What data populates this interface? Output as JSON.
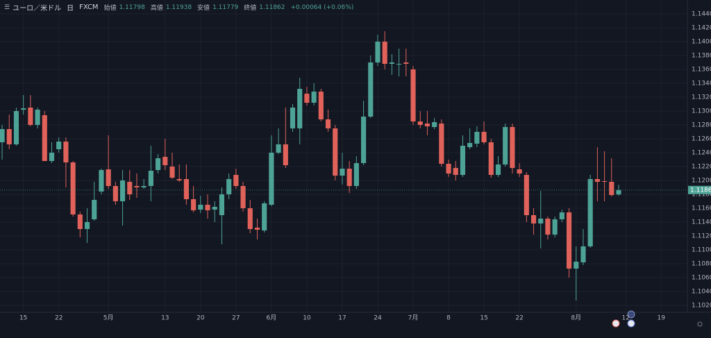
{
  "header": {
    "symbol": "ユーロ／米ドル",
    "interval": "日",
    "source": "FXCM",
    "open_label": "始値",
    "high_label": "高値",
    "low_label": "安値",
    "close_label": "終値",
    "change": "+0.00064 (+0.06%)"
  },
  "chart_data": {
    "type": "candlestick",
    "open": [
      1.1255,
      1.1274,
      1.1252,
      1.1302,
      1.1305,
      1.128,
      1.1294,
      1.1228,
      1.1245,
      1.1256,
      1.1226,
      1.1151,
      1.113,
      1.1144,
      1.1184,
      1.1216,
      1.1192,
      1.117,
      1.1198,
      1.1192,
      1.119,
      1.1192,
      1.1215,
      1.1234,
      1.122,
      1.1202,
      1.1202,
      1.1173,
      1.1158,
      1.1165,
      1.1158,
      1.115,
      1.118,
      1.1208,
      1.1192,
      1.116,
      1.1132,
      1.1128,
      1.1165,
      1.124,
      1.1252,
      1.1275,
      1.1275,
      1.1325,
      1.1312,
      1.1328,
      1.1288,
      1.1275,
      1.1207,
      1.1217,
      1.1192,
      1.1225,
      1.1292,
      1.137,
      1.14,
      1.1368,
      1.1368,
      1.137,
      1.136,
      1.1285,
      1.1282,
      1.1277,
      1.1282,
      1.1224,
      1.1218,
      1.1208,
      1.1248,
      1.1253,
      1.127,
      1.1255,
      1.1208,
      1.1223,
      1.1277,
      1.1216,
      1.1208,
      1.115,
      1.1138,
      1.1145,
      1.1122,
      1.1144,
      1.1154,
      1.1073,
      1.1082,
      1.1105,
      1.1202,
      1.1199,
      1.1198,
      1.11798
    ],
    "high": [
      1.128,
      1.1295,
      1.1305,
      1.1323,
      1.1323,
      1.1305,
      1.13,
      1.1255,
      1.1262,
      1.1262,
      1.1228,
      1.1155,
      1.116,
      1.1198,
      1.1217,
      1.1265,
      1.1198,
      1.1215,
      1.1215,
      1.121,
      1.1202,
      1.125,
      1.1238,
      1.126,
      1.124,
      1.1223,
      1.1223,
      1.1192,
      1.1178,
      1.118,
      1.117,
      1.119,
      1.121,
      1.1217,
      1.1198,
      1.1172,
      1.1145,
      1.117,
      1.1265,
      1.1275,
      1.1305,
      1.131,
      1.1348,
      1.1335,
      1.134,
      1.1332,
      1.1302,
      1.128,
      1.124,
      1.1228,
      1.1235,
      1.1315,
      1.138,
      1.141,
      1.1415,
      1.1382,
      1.139,
      1.139,
      1.1365,
      1.13,
      1.13,
      1.129,
      1.1288,
      1.123,
      1.1228,
      1.1265,
      1.1275,
      1.1278,
      1.1285,
      1.126,
      1.1235,
      1.1282,
      1.1282,
      1.1225,
      1.1212,
      1.116,
      1.1185,
      1.1148,
      1.1148,
      1.1158,
      1.116,
      1.1105,
      1.113,
      1.1208,
      1.1248,
      1.1242,
      1.1232,
      1.11938
    ],
    "low": [
      1.123,
      1.1245,
      1.125,
      1.1295,
      1.1278,
      1.1275,
      1.1228,
      1.1225,
      1.124,
      1.119,
      1.1148,
      1.1118,
      1.111,
      1.1142,
      1.118,
      1.1188,
      1.1165,
      1.1135,
      1.1172,
      1.1175,
      1.1188,
      1.117,
      1.121,
      1.1215,
      1.1202,
      1.1198,
      1.1165,
      1.1154,
      1.1153,
      1.1145,
      1.114,
      1.1108,
      1.1173,
      1.1188,
      1.1155,
      1.1124,
      1.1115,
      1.1125,
      1.1163,
      1.1238,
      1.1218,
      1.127,
      1.1252,
      1.1308,
      1.1308,
      1.1285,
      1.127,
      1.12,
      1.1194,
      1.1182,
      1.1188,
      1.1222,
      1.129,
      1.1365,
      1.136,
      1.1352,
      1.135,
      1.135,
      1.128,
      1.1275,
      1.1265,
      1.1274,
      1.122,
      1.1205,
      1.12,
      1.1205,
      1.1245,
      1.1248,
      1.1252,
      1.1204,
      1.1205,
      1.122,
      1.121,
      1.1205,
      1.114,
      1.1122,
      1.1102,
      1.1115,
      1.1118,
      1.114,
      1.106,
      1.1027,
      1.1078,
      1.1103,
      1.117,
      1.117,
      1.1177,
      1.11779
    ],
    "close": [
      1.1274,
      1.1252,
      1.13,
      1.1304,
      1.128,
      1.1302,
      1.1228,
      1.124,
      1.1256,
      1.1226,
      1.1151,
      1.113,
      1.114,
      1.1172,
      1.1215,
      1.1192,
      1.117,
      1.12,
      1.118,
      1.119,
      1.1192,
      1.1214,
      1.1232,
      1.1222,
      1.1204,
      1.12,
      1.1173,
      1.1157,
      1.1165,
      1.1157,
      1.1162,
      1.118,
      1.1202,
      1.1192,
      1.116,
      1.113,
      1.1129,
      1.1167,
      1.124,
      1.1252,
      1.1222,
      1.1305,
      1.1332,
      1.1312,
      1.1328,
      1.1288,
      1.1275,
      1.1207,
      1.1217,
      1.1192,
      1.1225,
      1.1292,
      1.137,
      1.14,
      1.1368,
      1.137,
      1.1368,
      1.1368,
      1.1285,
      1.128,
      1.1278,
      1.1284,
      1.1224,
      1.121,
      1.1208,
      1.125,
      1.1254,
      1.127,
      1.1255,
      1.1208,
      1.1223,
      1.1277,
      1.1218,
      1.121,
      1.115,
      1.1138,
      1.1145,
      1.1122,
      1.1144,
      1.1154,
      1.1073,
      1.1083,
      1.1105,
      1.1202,
      1.1198,
      1.1198,
      1.1179,
      1.11862
    ],
    "up_color": "#4ea397",
    "down_color": "#e0625a",
    "xlim": [
      -0.3,
      96.7
    ],
    "xticks": [
      {
        "value": 3,
        "label": "15"
      },
      {
        "value": 8,
        "label": "22"
      },
      {
        "value": 15,
        "label": "5月"
      },
      {
        "value": 23,
        "label": "13"
      },
      {
        "value": 28,
        "label": "20"
      },
      {
        "value": 33,
        "label": "27"
      },
      {
        "value": 38,
        "label": "6月"
      },
      {
        "value": 43,
        "label": "10"
      },
      {
        "value": 48,
        "label": "17"
      },
      {
        "value": 53,
        "label": "24"
      },
      {
        "value": 58,
        "label": "7月"
      },
      {
        "value": 63,
        "label": "8"
      },
      {
        "value": 68,
        "label": "15"
      },
      {
        "value": 73,
        "label": "22"
      },
      {
        "value": 81,
        "label": "8月"
      },
      {
        "value": 88,
        "label": "12"
      },
      {
        "value": 93,
        "label": "19"
      }
    ],
    "ylim": [
      1.101,
      1.146
    ],
    "yticks": [
      {
        "value": 1.144,
        "label": "1.14400"
      },
      {
        "value": 1.142,
        "label": "1.14200"
      },
      {
        "value": 1.14,
        "label": "1.14000"
      },
      {
        "value": 1.138,
        "label": "1.13800"
      },
      {
        "value": 1.136,
        "label": "1.13600"
      },
      {
        "value": 1.134,
        "label": "1.13400"
      },
      {
        "value": 1.132,
        "label": "1.13200"
      },
      {
        "value": 1.13,
        "label": "1.13000"
      },
      {
        "value": 1.128,
        "label": "1.12800"
      },
      {
        "value": 1.126,
        "label": "1.12600"
      },
      {
        "value": 1.124,
        "label": "1.12400"
      },
      {
        "value": 1.122,
        "label": "1.12200"
      },
      {
        "value": 1.12,
        "label": "1.12000"
      },
      {
        "value": 1.118,
        "label": "1.11800"
      },
      {
        "value": 1.116,
        "label": "1.11600"
      },
      {
        "value": 1.114,
        "label": "1.11400"
      },
      {
        "value": 1.112,
        "label": "1.11200"
      },
      {
        "value": 1.11,
        "label": "1.11000"
      },
      {
        "value": 1.108,
        "label": "1.10800"
      },
      {
        "value": 1.106,
        "label": "1.10600"
      },
      {
        "value": 1.104,
        "label": "1.10400"
      },
      {
        "value": 1.102,
        "label": "1.10200"
      }
    ],
    "grid": true
  }
}
